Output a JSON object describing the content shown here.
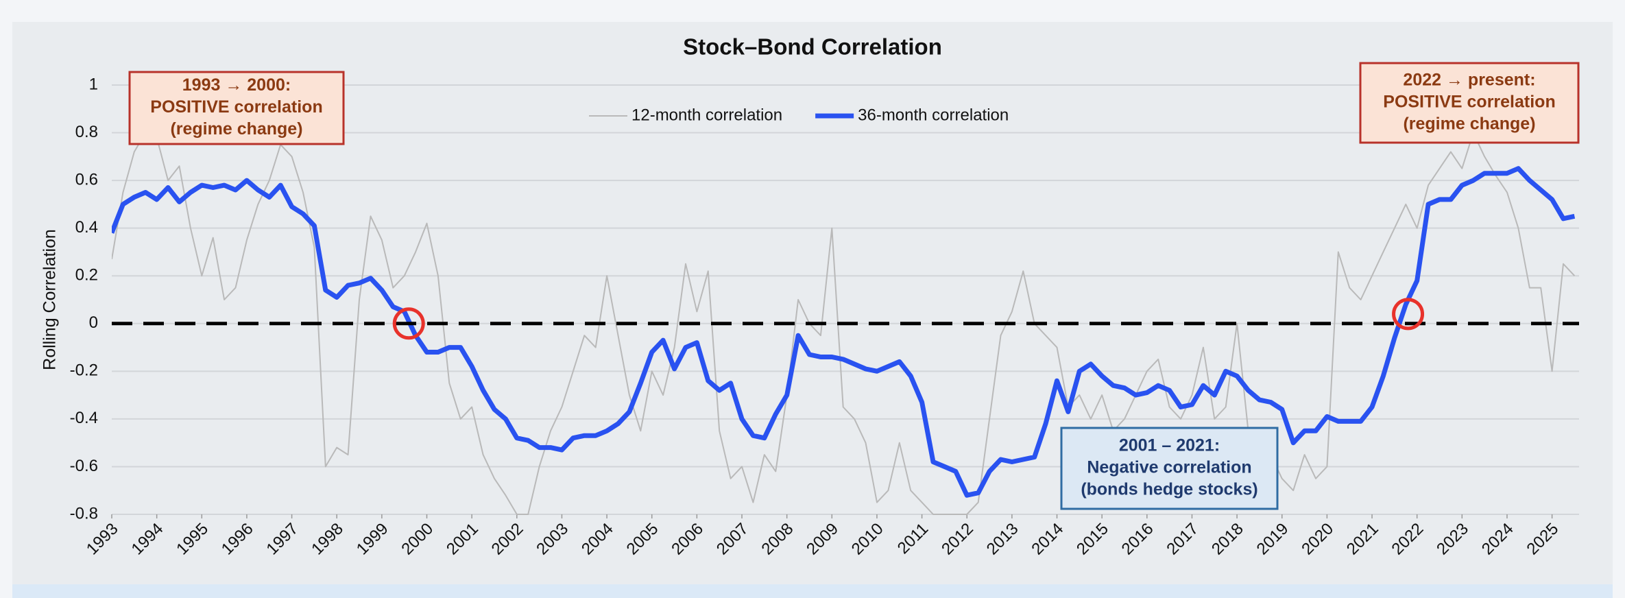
{
  "chart_data": {
    "type": "line",
    "title": "Stock–Bond Correlation",
    "y_label": "Rolling Correlation",
    "xlim": [
      1993,
      2025.6
    ],
    "ylim": [
      -0.8,
      1
    ],
    "xticks": [
      1993,
      1994,
      1995,
      1996,
      1997,
      1998,
      1999,
      2000,
      2001,
      2002,
      2003,
      2004,
      2005,
      2006,
      2007,
      2008,
      2009,
      2010,
      2011,
      2012,
      2013,
      2014,
      2015,
      2016,
      2017,
      2018,
      2019,
      2020,
      2021,
      2022,
      2023,
      2024,
      2025
    ],
    "yticks": [
      1,
      0.8,
      0.6,
      0.4,
      0.2,
      0,
      -0.2,
      -0.4,
      -0.6,
      -0.8
    ],
    "grid": true,
    "legend": "top",
    "hline": 0,
    "x": [
      1993,
      1993.25,
      1993.5,
      1993.75,
      1994,
      1994.25,
      1994.5,
      1994.75,
      1995,
      1995.25,
      1995.5,
      1995.75,
      1996,
      1996.25,
      1996.5,
      1996.75,
      1997,
      1997.25,
      1997.5,
      1997.75,
      1998,
      1998.25,
      1998.5,
      1998.75,
      1999,
      1999.25,
      1999.5,
      1999.75,
      2000,
      2000.25,
      2000.5,
      2000.75,
      2001,
      2001.25,
      2001.5,
      2001.75,
      2002,
      2002.25,
      2002.5,
      2002.75,
      2003,
      2003.25,
      2003.5,
      2003.75,
      2004,
      2004.25,
      2004.5,
      2004.75,
      2005,
      2005.25,
      2005.5,
      2005.75,
      2006,
      2006.25,
      2006.5,
      2006.75,
      2007,
      2007.25,
      2007.5,
      2007.75,
      2008,
      2008.25,
      2008.5,
      2008.75,
      2009,
      2009.25,
      2009.5,
      2009.75,
      2010,
      2010.25,
      2010.5,
      2010.75,
      2011,
      2011.25,
      2011.5,
      2011.75,
      2012,
      2012.25,
      2012.5,
      2012.75,
      2013,
      2013.25,
      2013.5,
      2013.75,
      2014,
      2014.25,
      2014.5,
      2014.75,
      2015,
      2015.25,
      2015.5,
      2015.75,
      2016,
      2016.25,
      2016.5,
      2016.75,
      2017,
      2017.25,
      2017.5,
      2017.75,
      2018,
      2018.25,
      2018.5,
      2018.75,
      2019,
      2019.25,
      2019.5,
      2019.75,
      2020,
      2020.25,
      2020.5,
      2020.75,
      2021,
      2021.25,
      2021.5,
      2021.75,
      2022,
      2022.25,
      2022.5,
      2022.75,
      2023,
      2023.25,
      2023.5,
      2023.75,
      2024,
      2024.25,
      2024.5,
      2024.75,
      2025,
      2025.25,
      2025.5
    ],
    "series": [
      {
        "name": "12-month correlation",
        "color": "#b9b9b9",
        "width": 2,
        "values": [
          0.27,
          0.55,
          0.72,
          0.8,
          0.78,
          0.6,
          0.66,
          0.4,
          0.2,
          0.36,
          0.1,
          0.15,
          0.35,
          0.5,
          0.6,
          0.75,
          0.7,
          0.55,
          0.32,
          -0.6,
          -0.52,
          -0.55,
          0.1,
          0.45,
          0.35,
          0.15,
          0.2,
          0.3,
          0.42,
          0.2,
          -0.25,
          -0.4,
          -0.35,
          -0.55,
          -0.65,
          -0.72,
          -0.8,
          -0.8,
          -0.6,
          -0.45,
          -0.35,
          -0.2,
          -0.05,
          -0.1,
          0.2,
          -0.05,
          -0.3,
          -0.45,
          -0.2,
          -0.3,
          -0.1,
          0.25,
          0.05,
          0.22,
          -0.45,
          -0.65,
          -0.6,
          -0.75,
          -0.55,
          -0.62,
          -0.3,
          0.1,
          0.0,
          -0.05,
          0.4,
          -0.35,
          -0.4,
          -0.5,
          -0.75,
          -0.7,
          -0.5,
          -0.7,
          -0.75,
          -0.8,
          -0.8,
          -0.8,
          -0.8,
          -0.75,
          -0.4,
          -0.05,
          0.05,
          0.22,
          0.0,
          -0.05,
          -0.1,
          -0.35,
          -0.3,
          -0.4,
          -0.3,
          -0.45,
          -0.4,
          -0.3,
          -0.2,
          -0.15,
          -0.35,
          -0.4,
          -0.3,
          -0.1,
          -0.4,
          -0.35,
          0.0,
          -0.45,
          -0.5,
          -0.55,
          -0.65,
          -0.7,
          -0.55,
          -0.65,
          -0.6,
          0.3,
          0.15,
          0.1,
          0.2,
          0.3,
          0.4,
          0.5,
          0.4,
          0.58,
          0.65,
          0.72,
          0.65,
          0.8,
          0.7,
          0.62,
          0.55,
          0.4,
          0.15,
          0.15,
          -0.2,
          0.25,
          0.2
        ]
      },
      {
        "name": "36-month correlation",
        "color": "#2952f0",
        "width": 7,
        "values": [
          0.38,
          0.5,
          0.53,
          0.55,
          0.52,
          0.57,
          0.51,
          0.55,
          0.58,
          0.57,
          0.58,
          0.56,
          0.6,
          0.56,
          0.53,
          0.58,
          0.49,
          0.46,
          0.41,
          0.14,
          0.11,
          0.16,
          0.17,
          0.19,
          0.14,
          0.07,
          0.05,
          -0.05,
          -0.12,
          -0.12,
          -0.1,
          -0.1,
          -0.18,
          -0.28,
          -0.36,
          -0.4,
          -0.48,
          -0.49,
          -0.52,
          -0.52,
          -0.53,
          -0.48,
          -0.47,
          -0.47,
          -0.45,
          -0.42,
          -0.37,
          -0.25,
          -0.12,
          -0.07,
          -0.19,
          -0.1,
          -0.08,
          -0.24,
          -0.28,
          -0.25,
          -0.4,
          -0.47,
          -0.48,
          -0.38,
          -0.3,
          -0.05,
          -0.13,
          -0.14,
          -0.14,
          -0.15,
          -0.17,
          -0.19,
          -0.2,
          -0.18,
          -0.16,
          -0.22,
          -0.33,
          -0.58,
          -0.6,
          -0.62,
          -0.72,
          -0.71,
          -0.62,
          -0.57,
          -0.58,
          -0.57,
          -0.56,
          -0.42,
          -0.24,
          -0.37,
          -0.2,
          -0.17,
          -0.22,
          -0.26,
          -0.27,
          -0.3,
          -0.29,
          -0.26,
          -0.28,
          -0.35,
          -0.34,
          -0.26,
          -0.3,
          -0.2,
          -0.22,
          -0.28,
          -0.32,
          -0.33,
          -0.36,
          -0.5,
          -0.45,
          -0.45,
          -0.39,
          -0.41,
          -0.41,
          -0.41,
          -0.35,
          -0.22,
          -0.06,
          0.08,
          0.18,
          0.5,
          0.52,
          0.52,
          0.58,
          0.6,
          0.63,
          0.63,
          0.63,
          0.65,
          0.6,
          0.56,
          0.52,
          0.44,
          0.45
        ]
      }
    ],
    "highlights": [
      {
        "x": 1999.6,
        "y": 0
      },
      {
        "x": 2021.8,
        "y": 0.04
      }
    ],
    "annotations": [
      {
        "lines": [
          "1993 → 2000:",
          "POSITIVE correlation",
          "(regime change)"
        ],
        "tone": "positive"
      },
      {
        "lines": [
          "2022 → present:",
          "POSITIVE correlation",
          "(regime change)"
        ],
        "tone": "positive"
      },
      {
        "lines": [
          "2001 – 2021:",
          "Negative correlation",
          "(bonds hedge stocks)"
        ],
        "tone": "negative"
      }
    ]
  }
}
